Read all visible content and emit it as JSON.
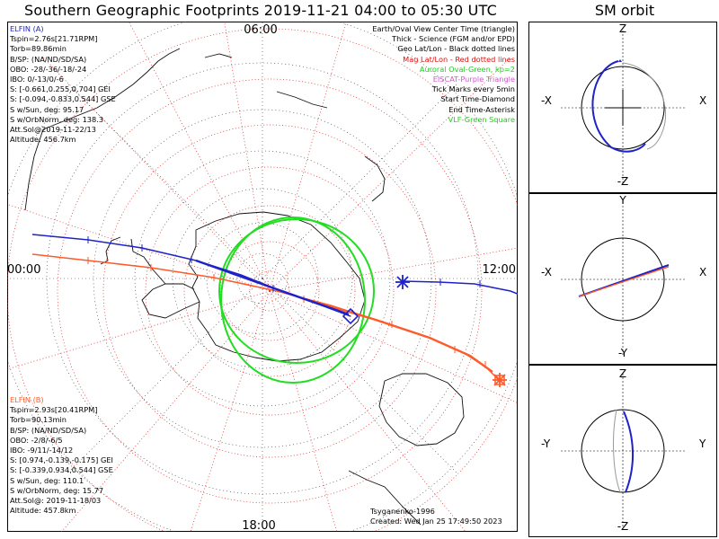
{
  "title": "Southern Geographic Footprints 2019-11-21 04:00 to 05:30 UTC",
  "orbit_title": "SM orbit",
  "colors": {
    "probe_a": "#1e22c8",
    "probe_b": "#ff5a2a",
    "aurora": "#22dd22",
    "eiscat": "#d455d4",
    "mag_grid": "#d22",
    "geo_grid": "#000",
    "vlf": "#22cc22"
  },
  "map": {
    "lt_labels": {
      "top": "06:00",
      "left": "00:00",
      "right": "12:00",
      "bottom": "18:00"
    }
  },
  "legend": [
    {
      "text": "Earth/Oval View Center Time (triangle)",
      "color": "#000000"
    },
    {
      "text": "Thick - Science (FGM and/or EPD)",
      "color": "#000000"
    },
    {
      "text": "Geo Lat/Lon - Black dotted lines",
      "color": "#000000"
    },
    {
      "text": "Mag Lat/Lon - Red dotted lines",
      "color": "#dd1111"
    },
    {
      "text": "Auroral Oval-Green, kp=2",
      "color": "#22cc22"
    },
    {
      "text": "EISCAT-Purple Triangle",
      "color": "#d455d4"
    },
    {
      "text": "Tick Marks every 5min",
      "color": "#000000"
    },
    {
      "text": "Start Time-Diamond",
      "color": "#000000"
    },
    {
      "text": "End Time-Asterisk",
      "color": "#000000"
    },
    {
      "text": "VLF-Green Square",
      "color": "#22cc22"
    }
  ],
  "probe_a": {
    "name": "ELFIN (A)",
    "lines": [
      "Tspin=2.76s[21.71RPM]",
      "Torb=89.86min",
      "B/SP: (NA/ND/SD/SA)",
      "OBO: -28/-36/-18/-24",
      "IBO: 0/-13/0/-6",
      "S: [-0.661,0.255,0.704] GEI",
      "S: [-0.094,-0.833,0.544] GSE",
      "S w/Sun, deg: 95.17",
      "S w/OrbNorm, deg: 138.3",
      "Att.Sol@2019-11-22/13",
      "Altitude: 456.7km"
    ]
  },
  "probe_b": {
    "name": "ELFIN (B)",
    "lines": [
      "Tspin=2.93s[20.41RPM]",
      "Torb=90.13min",
      "B/SP: (NA/ND/SD/SA)",
      "OBO: -2/8/-6/5",
      "IBO: -9/11/-14/12",
      "S: [0.974,-0.139,-0.175] GEI",
      "S: [-0.339,0.934,0.544] GSE",
      "S w/Sun, deg: 110.1",
      "S w/OrbNorm, deg: 15.77",
      "Att.Sol@: 2019-11-18/03",
      "Altitude: 457.8km"
    ]
  },
  "credit": {
    "model": "Tsyganenko-1996",
    "created": "Created: Wed Jan 25 17:49:50 2023"
  },
  "orbit_panels": [
    {
      "top": "Z",
      "left": "-X",
      "right": "X",
      "bottom": "-Z"
    },
    {
      "top": "Y",
      "left": "-X",
      "right": "X",
      "bottom": "-Y"
    },
    {
      "top": "Z",
      "left": "-Y",
      "right": "Y",
      "bottom": "-Z"
    }
  ],
  "chart_data": {
    "type": "scatter",
    "title": "Southern Geographic Footprints 2019-11-21 04:00 to 05:30 UTC",
    "projection": "south polar stereographic, local-time labelled",
    "series": [
      {
        "name": "ELFIN (A)",
        "color": "#1e22c8"
      },
      {
        "name": "ELFIN (B)",
        "color": "#ff5a2a"
      }
    ]
  }
}
